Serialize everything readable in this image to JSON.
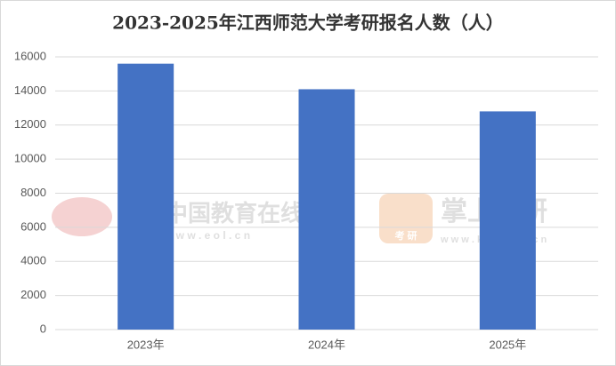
{
  "chart_data": {
    "type": "bar",
    "title": "2023-2025年江西师范大学考研报名人数（人）",
    "categories": [
      "2023年",
      "2024年",
      "2025年"
    ],
    "values": [
      15600,
      14100,
      12800
    ],
    "color": "#4472c4",
    "ylim": [
      0,
      16000
    ],
    "yticks": [
      0,
      2000,
      4000,
      6000,
      8000,
      10000,
      12000,
      14000,
      16000
    ],
    "grid": true
  },
  "watermarks": [
    "中国教育在线",
    "w w w . e o l . c n",
    "掌上考研",
    "考 研",
    "w w w . k a o y a n . c n"
  ]
}
